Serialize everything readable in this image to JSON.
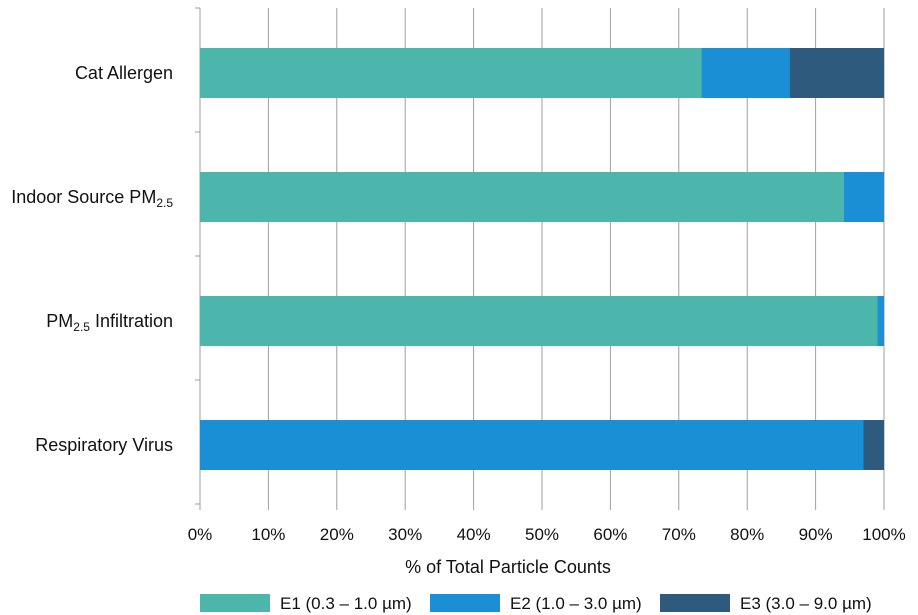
{
  "chart_data": {
    "type": "bar",
    "orientation": "horizontal",
    "stacked": true,
    "categories": [
      {
        "parts": [
          {
            "text": "Cat Allergen",
            "sub": false
          }
        ]
      },
      {
        "parts": [
          {
            "text": "Indoor Source PM",
            "sub": false
          },
          {
            "text": "2.5",
            "sub": true
          }
        ]
      },
      {
        "parts": [
          {
            "text": "PM",
            "sub": false
          },
          {
            "text": "2.5",
            "sub": true
          },
          {
            "text": " Infiltration",
            "sub": false
          }
        ]
      },
      {
        "parts": [
          {
            "text": "Respiratory Virus",
            "sub": false
          }
        ]
      }
    ],
    "series": [
      {
        "name": "E1 (0.3 – 1.0 µm)",
        "color": "#4db6ac",
        "values": [
          73.3,
          94.1,
          99.0,
          0
        ]
      },
      {
        "name": "E2 (1.0 – 3.0 µm)",
        "color": "#1a8fd6",
        "values": [
          12.9,
          5.9,
          1.0,
          97.0
        ]
      },
      {
        "name": "E3 (3.0 – 9.0 µm)",
        "color": "#2e5a7e",
        "values": [
          13.8,
          0,
          0,
          3.0
        ]
      }
    ],
    "xlim": [
      0,
      100
    ],
    "xticks": [
      "0%",
      "10%",
      "20%",
      "30%",
      "40%",
      "50%",
      "60%",
      "70%",
      "80%",
      "90%",
      "100%"
    ],
    "xlabel": "% of Total Particle Counts",
    "ylabel": "",
    "title": "",
    "grid": "vertical",
    "legend_position": "bottom"
  }
}
